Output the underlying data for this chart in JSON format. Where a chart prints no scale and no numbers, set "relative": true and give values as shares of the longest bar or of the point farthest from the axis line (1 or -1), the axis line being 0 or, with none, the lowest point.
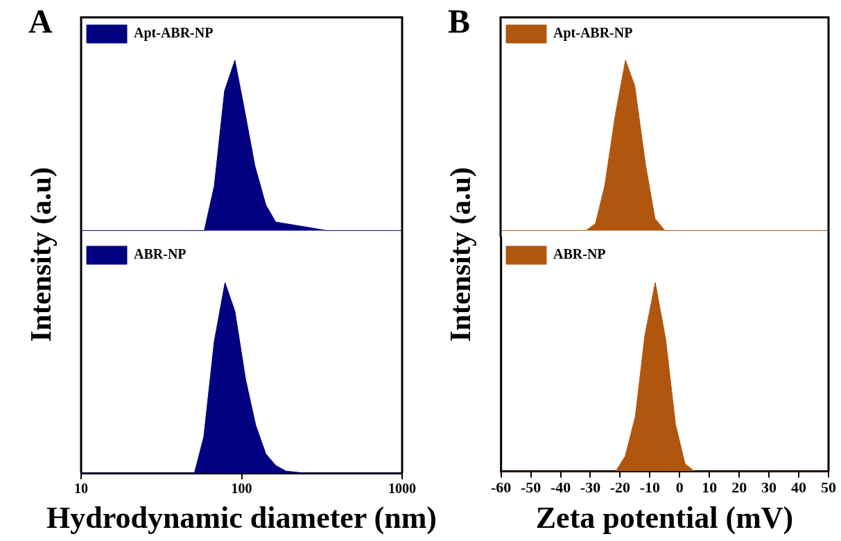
{
  "chart_data": [
    {
      "type": "area",
      "title": "A",
      "ylabel": "Intensity (a.u)",
      "relative": true,
      "log": "x",
      "xlim": [
        10,
        1000
      ],
      "tick_labels": false,
      "legend": "top left",
      "series": [
        {
          "name": "Apt-ABR-NP",
          "color": "#000080",
          "x": [
            10,
            58.5,
            67.5,
            78.3,
            90.8,
            102.7,
            121,
            141.6,
            163,
            255,
            338,
            1000
          ],
          "values": [
            0,
            0,
            0.26,
            0.82,
            1,
            0.74,
            0.38,
            0.15,
            0.05,
            0.02,
            0,
            0
          ]
        }
      ]
    },
    {
      "type": "area",
      "xlabel": "Hydrodynamic diameter (nm)",
      "relative": true,
      "log": "x",
      "xlim": [
        10,
        1000
      ],
      "xticks": [
        10,
        100,
        1000
      ],
      "tick_labels": "x",
      "legend": "top left",
      "series": [
        {
          "name": "ABR-NP",
          "color": "#000080",
          "x": [
            10,
            50.8,
            58.1,
            67.5,
            78.8,
            90.8,
            106,
            122.5,
            141.6,
            163,
            189,
            247,
            1000
          ],
          "values": [
            0,
            0,
            0.19,
            0.69,
            1,
            0.85,
            0.49,
            0.25,
            0.1,
            0.04,
            0.01,
            0,
            0
          ]
        }
      ]
    },
    {
      "type": "area",
      "title": "B",
      "ylabel": "Intensity (a.u)",
      "relative": true,
      "xlim": [
        -60,
        50
      ],
      "tick_labels": false,
      "legend": "top left",
      "series": [
        {
          "name": "Apt-ABR-NP",
          "color": "#b0560f",
          "x": [
            -60,
            -31.4,
            -28.2,
            -25.1,
            -21.5,
            -18.1,
            -15,
            -11.4,
            -8.2,
            -4.9,
            50
          ],
          "values": [
            0,
            0,
            0.04,
            0.26,
            0.68,
            1,
            0.85,
            0.39,
            0.07,
            0,
            0
          ]
        }
      ]
    },
    {
      "type": "area",
      "xlabel": "Zeta potential (mV)",
      "relative": true,
      "xlim": [
        -60,
        50
      ],
      "xticks": [
        -60,
        -50,
        -40,
        -30,
        -20,
        -10,
        0,
        10,
        20,
        30,
        40,
        50
      ],
      "tick_labels": "x",
      "legend": "top left",
      "series": [
        {
          "name": "ABR-NP",
          "color": "#b0560f",
          "x": [
            -60,
            -21.5,
            -18.3,
            -14.9,
            -11.7,
            -8.2,
            -4.7,
            -1.4,
            1.8,
            5,
            50
          ],
          "values": [
            0,
            0,
            0.08,
            0.29,
            0.72,
            1,
            0.7,
            0.25,
            0.04,
            0,
            0
          ]
        }
      ]
    }
  ]
}
